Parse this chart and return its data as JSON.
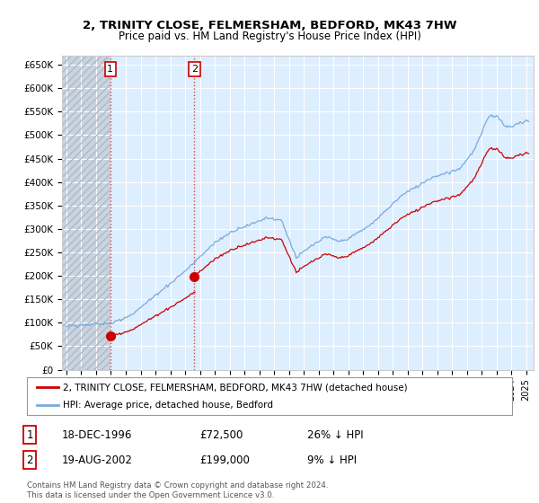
{
  "title1": "2, TRINITY CLOSE, FELMERSHAM, BEDFORD, MK43 7HW",
  "title2": "Price paid vs. HM Land Registry's House Price Index (HPI)",
  "background_color": "#ffffff",
  "plot_bg_color": "#ddeeff",
  "hatch_bg_color": "#c8d4e0",
  "grid_color": "#ffffff",
  "hpi_color": "#7aaadd",
  "price_color": "#cc0000",
  "sale1_date": 1996.96,
  "sale1_price": 72500,
  "sale2_date": 2002.63,
  "sale2_price": 199000,
  "legend_label1": "2, TRINITY CLOSE, FELMERSHAM, BEDFORD, MK43 7HW (detached house)",
  "legend_label2": "HPI: Average price, detached house, Bedford",
  "table_row1": [
    "1",
    "18-DEC-1996",
    "£72,500",
    "26% ↓ HPI"
  ],
  "table_row2": [
    "2",
    "19-AUG-2002",
    "£199,000",
    "9% ↓ HPI"
  ],
  "footer": "Contains HM Land Registry data © Crown copyright and database right 2024.\nThis data is licensed under the Open Government Licence v3.0.",
  "ylim": [
    0,
    670000
  ],
  "xlim_start": 1993.7,
  "xlim_end": 2025.5,
  "yticks": [
    0,
    50000,
    100000,
    150000,
    200000,
    250000,
    300000,
    350000,
    400000,
    450000,
    500000,
    550000,
    600000,
    650000
  ],
  "ytick_labels": [
    "£0",
    "£50K",
    "£100K",
    "£150K",
    "£200K",
    "£250K",
    "£300K",
    "£350K",
    "£400K",
    "£450K",
    "£500K",
    "£550K",
    "£600K",
    "£650K"
  ]
}
